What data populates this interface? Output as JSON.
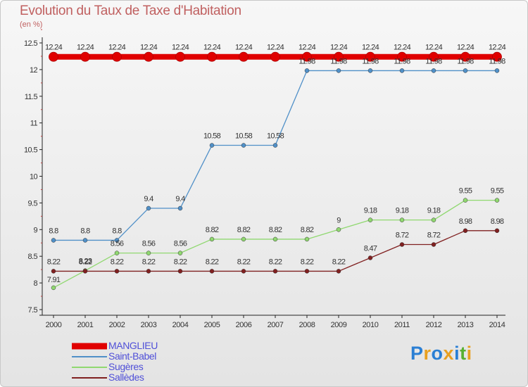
{
  "header": {
    "title": "Evolution du Taux de Taxe d'Habitation",
    "subtitle": "(en %)"
  },
  "logo": {
    "text": "Proxiti",
    "colors": [
      "#2a7fd4",
      "#e8a020",
      "#2a7fd4",
      "#e8a020",
      "#2a7fd4",
      "#58b030",
      "#e8a020"
    ]
  },
  "chart_data": {
    "type": "line",
    "title": "Evolution du Taux de Taxe d'Habitation",
    "subtitle": "(en %)",
    "xlabel": "",
    "ylabel": "",
    "ylim": [
      7.5,
      12.5
    ],
    "y_ticks": [
      "7.5",
      "8",
      "8.5",
      "9",
      "9.5",
      "10",
      "10.5",
      "11",
      "11.5",
      "12",
      "12.5"
    ],
    "categories": [
      "2000",
      "2001",
      "2002",
      "2003",
      "2004",
      "2005",
      "2006",
      "2007",
      "2008",
      "2009",
      "2010",
      "2011",
      "2012",
      "2013",
      "2014"
    ],
    "grid": false,
    "legend_position": "bottom-left",
    "series": [
      {
        "name": "MANGLIEU",
        "color": "#e00000",
        "values": [
          12.24,
          12.24,
          12.24,
          12.24,
          12.24,
          12.24,
          12.24,
          12.24,
          12.24,
          12.24,
          12.24,
          12.24,
          12.24,
          12.24,
          12.24
        ],
        "labels": [
          "12.24",
          "12.24",
          "12.24",
          "12.24",
          "12.24",
          "12.24",
          "12.24",
          "12.24",
          "12.24",
          "12.24",
          "12.24",
          "12.24",
          "12.24",
          "12.24",
          "12.24"
        ]
      },
      {
        "name": "Saint-Babel",
        "color": "#5090c8",
        "values": [
          8.8,
          8.8,
          8.8,
          9.4,
          9.4,
          10.58,
          10.58,
          10.58,
          11.98,
          11.98,
          11.98,
          11.98,
          11.98,
          11.98,
          11.98
        ],
        "labels": [
          "8.8",
          "8.8",
          "8.8",
          "9.4",
          "9.4",
          "10.58",
          "10.58",
          "10.58",
          "11.98",
          "11.98",
          "11.98",
          "11.98",
          "11.98",
          "11.98",
          "11.98"
        ]
      },
      {
        "name": "Sugères",
        "color": "#90d870",
        "values": [
          7.91,
          8.23,
          8.56,
          8.56,
          8.56,
          8.82,
          8.82,
          8.82,
          8.82,
          9,
          9.18,
          9.18,
          9.18,
          9.55,
          9.55
        ],
        "labels": [
          "7.91",
          "8.23",
          "8.56",
          "8.56",
          "8.56",
          "8.82",
          "8.82",
          "8.82",
          "8.82",
          "9",
          "9.18",
          "9.18",
          "9.18",
          "9.55",
          "9.55"
        ]
      },
      {
        "name": "Sallèdes",
        "color": "#802020",
        "values": [
          8.22,
          8.22,
          8.22,
          8.22,
          8.22,
          8.22,
          8.22,
          8.22,
          8.22,
          8.22,
          8.47,
          8.72,
          8.72,
          8.98,
          8.98
        ],
        "labels": [
          "8.22",
          "8.22",
          "8.22",
          "8.22",
          "8.22",
          "8.22",
          "8.22",
          "8.22",
          "8.22",
          "8.22",
          "8.47",
          "8.72",
          "8.72",
          "8.98",
          "8.98"
        ]
      }
    ]
  }
}
